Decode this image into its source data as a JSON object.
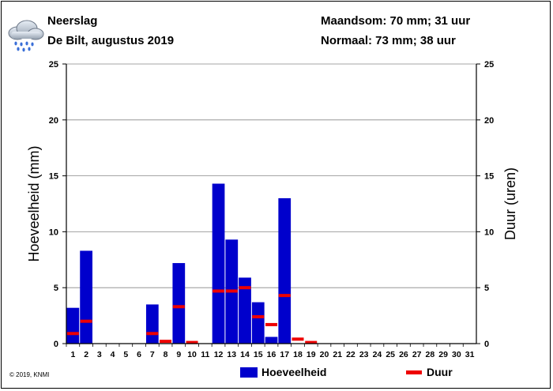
{
  "header": {
    "title": "Neerslag",
    "subtitle": "De Bilt, augustus 2019",
    "month_sum": "Maandsom: 70 mm; 31 uur",
    "normal": "Normaal: 73 mm; 38 uur",
    "icon": "rain-cloud-icon"
  },
  "footer": {
    "copyright": "© 2019, KNMI"
  },
  "colors": {
    "bar": "#0000cc",
    "duration": "#ee0000",
    "grid": "#888888"
  },
  "chart_data": {
    "type": "bar",
    "title": "Neerslag",
    "subtitle": "De Bilt, augustus 2019",
    "xlabel": "",
    "ylabel": "Hoeveelheid (mm)",
    "y2label": "Duur (uren)",
    "ylim": [
      0,
      25
    ],
    "y2lim": [
      0,
      25
    ],
    "yticks": [
      "0",
      "5",
      "10",
      "15",
      "20",
      "25"
    ],
    "grid": true,
    "legend_position": "bottom",
    "categories": [
      "1",
      "2",
      "3",
      "4",
      "5",
      "6",
      "7",
      "8",
      "9",
      "10",
      "11",
      "12",
      "13",
      "14",
      "15",
      "16",
      "17",
      "18",
      "19",
      "20",
      "21",
      "22",
      "23",
      "24",
      "25",
      "26",
      "27",
      "28",
      "29",
      "30",
      "31"
    ],
    "series": [
      {
        "name": "Hoeveelheid",
        "kind": "bar",
        "color": "#0000cc",
        "values": [
          3.2,
          8.3,
          0,
          0,
          0,
          0,
          3.5,
          0,
          7.2,
          0,
          0,
          14.3,
          9.3,
          5.9,
          3.7,
          0.6,
          13.0,
          0,
          0,
          0,
          0,
          0,
          0,
          0,
          0,
          0,
          0,
          0,
          0,
          0,
          0
        ]
      },
      {
        "name": "Duur",
        "kind": "marker",
        "color": "#ee0000",
        "values": [
          0.9,
          2.0,
          null,
          null,
          null,
          null,
          0.9,
          0.2,
          3.3,
          0.1,
          null,
          4.7,
          4.7,
          5.0,
          2.4,
          1.7,
          4.3,
          0.4,
          0.1,
          null,
          null,
          null,
          null,
          null,
          null,
          null,
          null,
          null,
          null,
          null,
          null
        ]
      }
    ]
  }
}
